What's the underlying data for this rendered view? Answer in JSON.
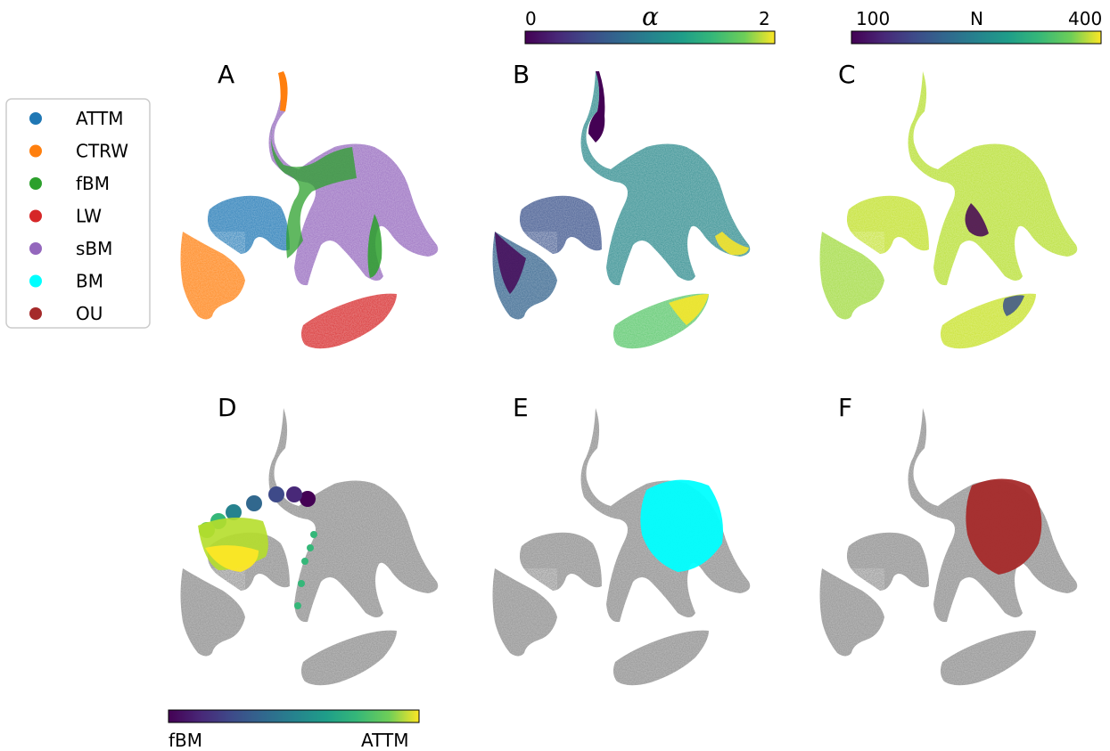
{
  "figure": {
    "panels": [
      "A",
      "B",
      "C",
      "D",
      "E",
      "F"
    ],
    "legend": {
      "entries": [
        {
          "label": "ATTM",
          "color": "#1f77b4"
        },
        {
          "label": "CTRW",
          "color": "#ff7f0e"
        },
        {
          "label": "fBM",
          "color": "#2ca02c"
        },
        {
          "label": "LW",
          "color": "#d62728"
        },
        {
          "label": "sBM",
          "color": "#9467bd"
        },
        {
          "label": "BM",
          "color": "#00ffff"
        },
        {
          "label": "OU",
          "color": "#a52a2a"
        }
      ]
    },
    "colorbars": {
      "alpha": {
        "label": "α",
        "min_label": "0",
        "max_label": "2",
        "colormap": "viridis"
      },
      "N": {
        "label": "N",
        "min_label": "100",
        "max_label": "400",
        "colormap": "viridis"
      },
      "model_mix": {
        "min_label": "fBM",
        "max_label": "ATTM",
        "colormap": "viridis"
      }
    },
    "background_color": "#808080"
  },
  "chart_data": [
    {
      "panel": "A",
      "type": "scatter",
      "coloring": "model",
      "categories": [
        "ATTM",
        "CTRW",
        "fBM",
        "LW",
        "sBM"
      ]
    },
    {
      "panel": "B",
      "type": "scatter",
      "coloring": "alpha",
      "range": [
        0,
        2
      ]
    },
    {
      "panel": "C",
      "type": "scatter",
      "coloring": "N",
      "range": [
        100,
        400
      ]
    },
    {
      "panel": "D",
      "type": "scatter",
      "highlight": "fBM to ATTM path",
      "colorbar": [
        "fBM",
        "ATTM"
      ]
    },
    {
      "panel": "E",
      "type": "scatter",
      "highlight": "BM",
      "highlight_color": "#00ffff"
    },
    {
      "panel": "F",
      "type": "scatter",
      "highlight": "OU",
      "highlight_color": "#a52a2a"
    }
  ]
}
